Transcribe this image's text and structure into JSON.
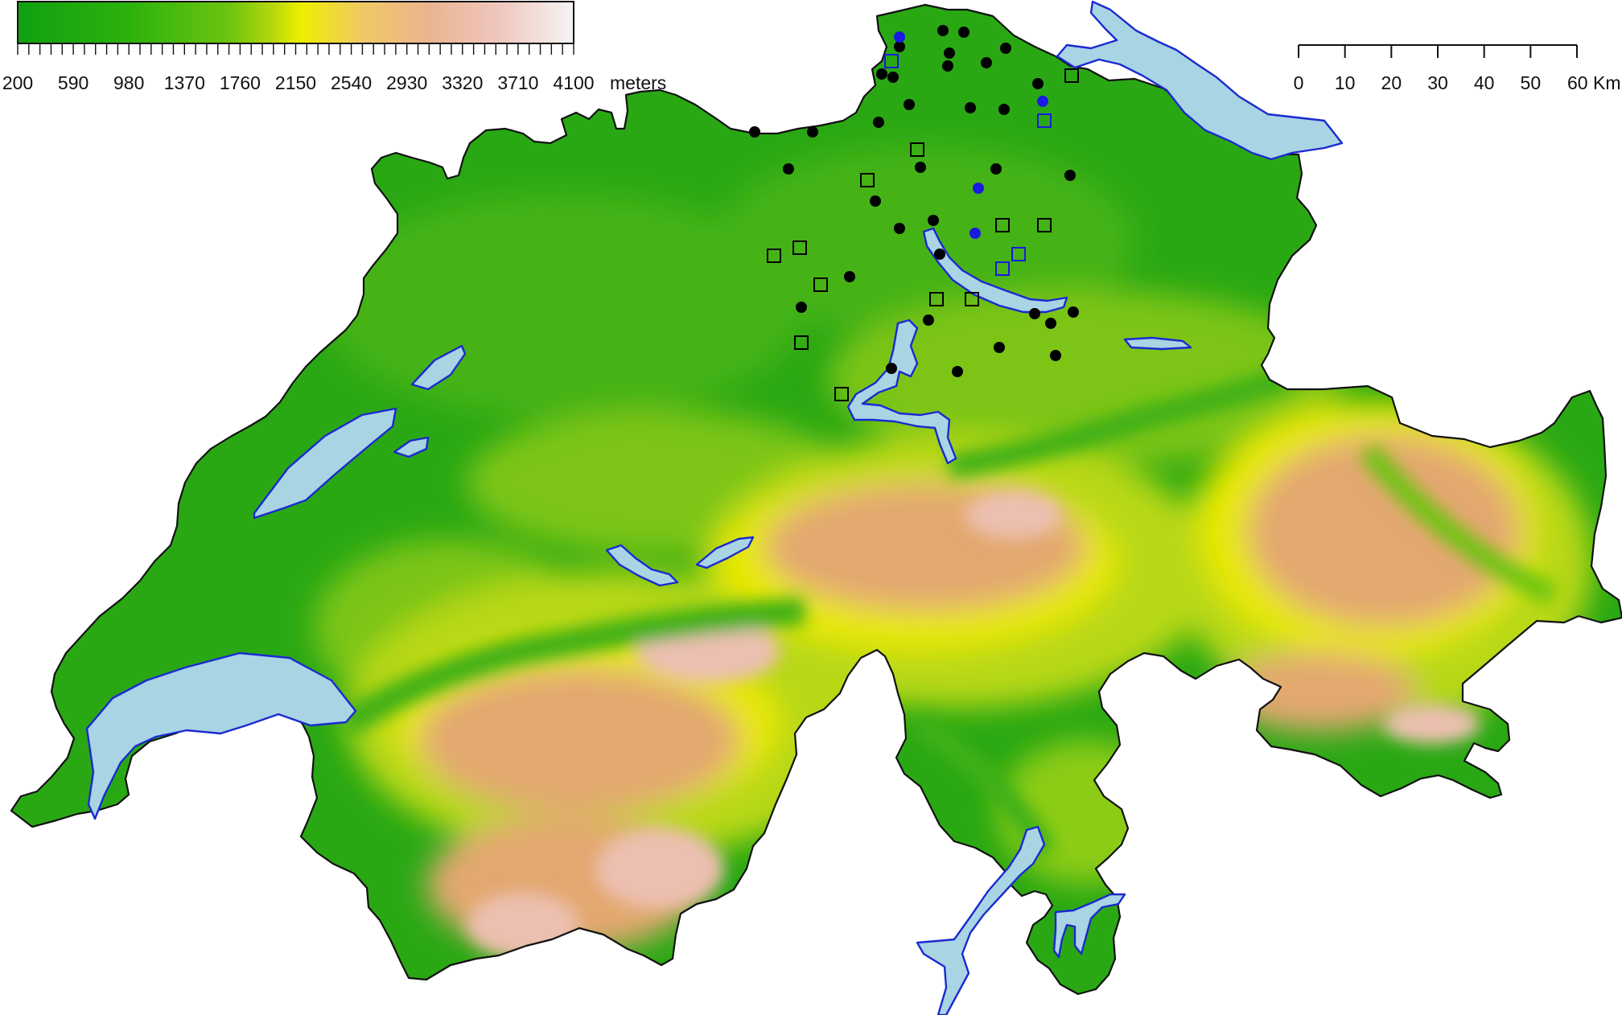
{
  "legend": {
    "tick_labels": [
      "200",
      "590",
      "980",
      "1370",
      "1760",
      "2150",
      "2540",
      "2930",
      "3320",
      "3710",
      "4100"
    ],
    "unit": "meters",
    "colors": [
      "#10a010",
      "#2cb20d",
      "#6cc40f",
      "#b6d80c",
      "#eeee00",
      "#f0c864",
      "#eab490",
      "#f0c8c0",
      "#f4f4f4"
    ]
  },
  "scalebar": {
    "tick_labels": [
      "0",
      "10",
      "20",
      "30",
      "40",
      "50",
      "60 Km"
    ]
  },
  "map": {
    "colors": {
      "lowland": "#2aa814",
      "plateau": "#45b316",
      "hills": "#7cc514",
      "prealps": "#b8d814",
      "snowline": "#e8e800",
      "alps": "#e3a870",
      "peaks": "#ecc0b0",
      "lake": "#a8d4e4",
      "lake_edge": "#1a2ad0",
      "border": "#111111"
    },
    "marker_groups": {
      "black_dots": {
        "count": 34,
        "color": "#000000",
        "shape": "filled-circle"
      },
      "blue_dots": {
        "count": 4,
        "color": "#1a1ae0",
        "shape": "filled-circle"
      },
      "black_squares": {
        "count": 13,
        "color": "#000000",
        "shape": "open-square"
      },
      "blue_squares": {
        "count": 5,
        "color": "#1a1ae0",
        "shape": "open-square"
      }
    }
  }
}
